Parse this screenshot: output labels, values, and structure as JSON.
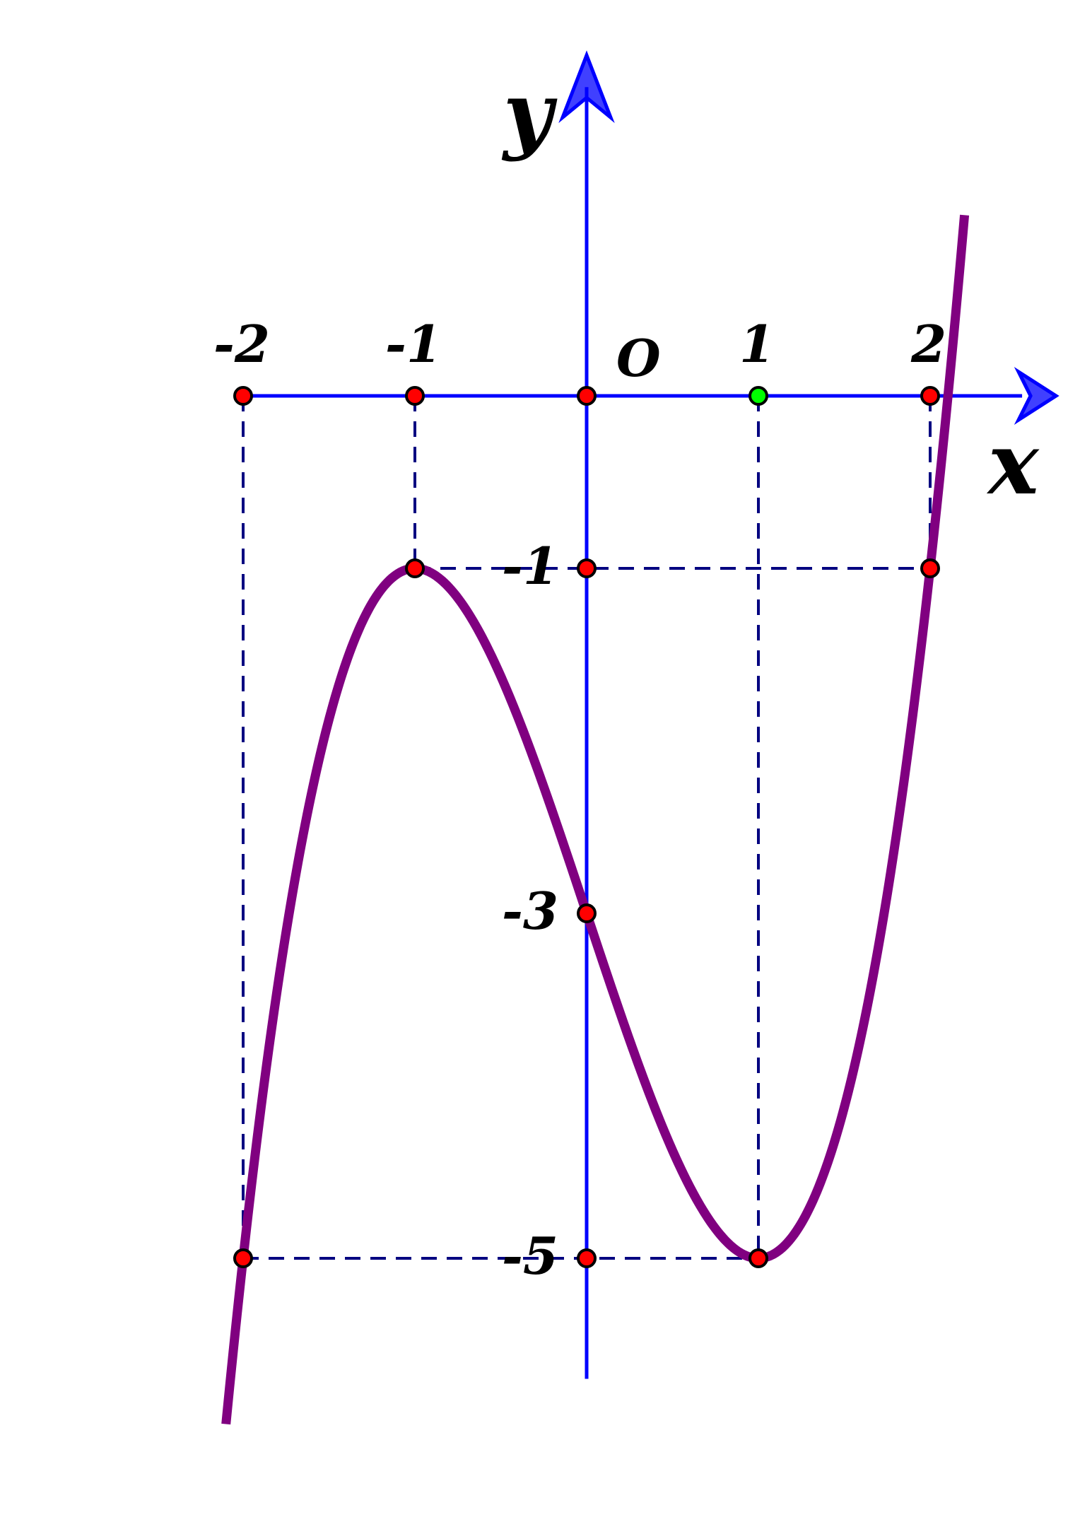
{
  "chart_data": {
    "type": "line",
    "title": "",
    "xlabel": "x",
    "ylabel": "y",
    "origin_label": "O",
    "xlim": [
      -2.02,
      2.7
    ],
    "ylim": [
      -5.74,
      1.95
    ],
    "x_ticks": [
      {
        "value": -2,
        "label": "-2"
      },
      {
        "value": -1,
        "label": "-1"
      },
      {
        "value": 1,
        "label": "1"
      },
      {
        "value": 2,
        "label": "2"
      }
    ],
    "y_ticks": [
      {
        "value": -1,
        "label": "-1"
      },
      {
        "value": -3,
        "label": "-3"
      },
      {
        "value": -5,
        "label": "-5"
      }
    ],
    "series": [
      {
        "function": "x^3 - 3x - 3",
        "coefficients": [
          1,
          0,
          -3,
          -3
        ],
        "x_range": [
          -2.1,
          2.2
        ],
        "samples": [
          {
            "x": -2,
            "y": -5
          },
          {
            "x": -1,
            "y": -1
          },
          {
            "x": 0,
            "y": -3
          },
          {
            "x": 1,
            "y": -5
          },
          {
            "x": 2,
            "y": -1
          }
        ]
      }
    ],
    "points": [
      {
        "x": -2,
        "y": 0,
        "color": "#ff0000"
      },
      {
        "x": -1,
        "y": 0,
        "color": "#ff0000"
      },
      {
        "x": 0,
        "y": 0,
        "color": "#ff0000"
      },
      {
        "x": 1,
        "y": 0,
        "color": "#00ff00"
      },
      {
        "x": 2,
        "y": 0,
        "color": "#ff0000"
      },
      {
        "x": -1,
        "y": -1,
        "color": "#ff0000"
      },
      {
        "x": 0,
        "y": -1,
        "color": "#ff0000"
      },
      {
        "x": 2,
        "y": -1,
        "color": "#ff0000"
      },
      {
        "x": 0,
        "y": -3,
        "color": "#ff0000"
      },
      {
        "x": -2,
        "y": -5,
        "color": "#ff0000"
      },
      {
        "x": 0,
        "y": -5,
        "color": "#ff0000"
      },
      {
        "x": 1,
        "y": -5,
        "color": "#ff0000"
      }
    ],
    "guide_lines": [
      {
        "from": [
          -2,
          0
        ],
        "to": [
          -2,
          -5
        ]
      },
      {
        "from": [
          -1,
          0
        ],
        "to": [
          -1,
          -1
        ]
      },
      {
        "from": [
          1,
          0
        ],
        "to": [
          1,
          -5
        ]
      },
      {
        "from": [
          2,
          0
        ],
        "to": [
          2,
          -1
        ]
      },
      {
        "from": [
          -1,
          -1
        ],
        "to": [
          2,
          -1
        ]
      },
      {
        "from": [
          -2,
          -5
        ],
        "to": [
          1,
          -5
        ]
      }
    ],
    "grid": false,
    "colors": {
      "axis": "#0000ff",
      "curve": "#800080",
      "guide": "#000080",
      "point_stroke": "#000000"
    }
  }
}
